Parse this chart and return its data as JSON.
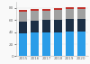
{
  "years": [
    "2015",
    "2016",
    "2017",
    "2018",
    "2019",
    "2020"
  ],
  "segments": {
    "blue": [
      38,
      39,
      40,
      40,
      41,
      41
    ],
    "navy": [
      20,
      20,
      20,
      21,
      21,
      21
    ],
    "gray": [
      16,
      16,
      16,
      16,
      16,
      16
    ],
    "red": [
      3,
      3,
      3,
      3,
      3,
      3
    ]
  },
  "colors": {
    "blue": "#2b9de8",
    "navy": "#1c2f45",
    "gray": "#a0a0a0",
    "red": "#c0312b"
  },
  "ylim": [
    0,
    90
  ],
  "yticks": [
    0,
    20,
    40,
    60,
    80
  ],
  "background_color": "#f9f9f9",
  "bar_width": 0.72
}
